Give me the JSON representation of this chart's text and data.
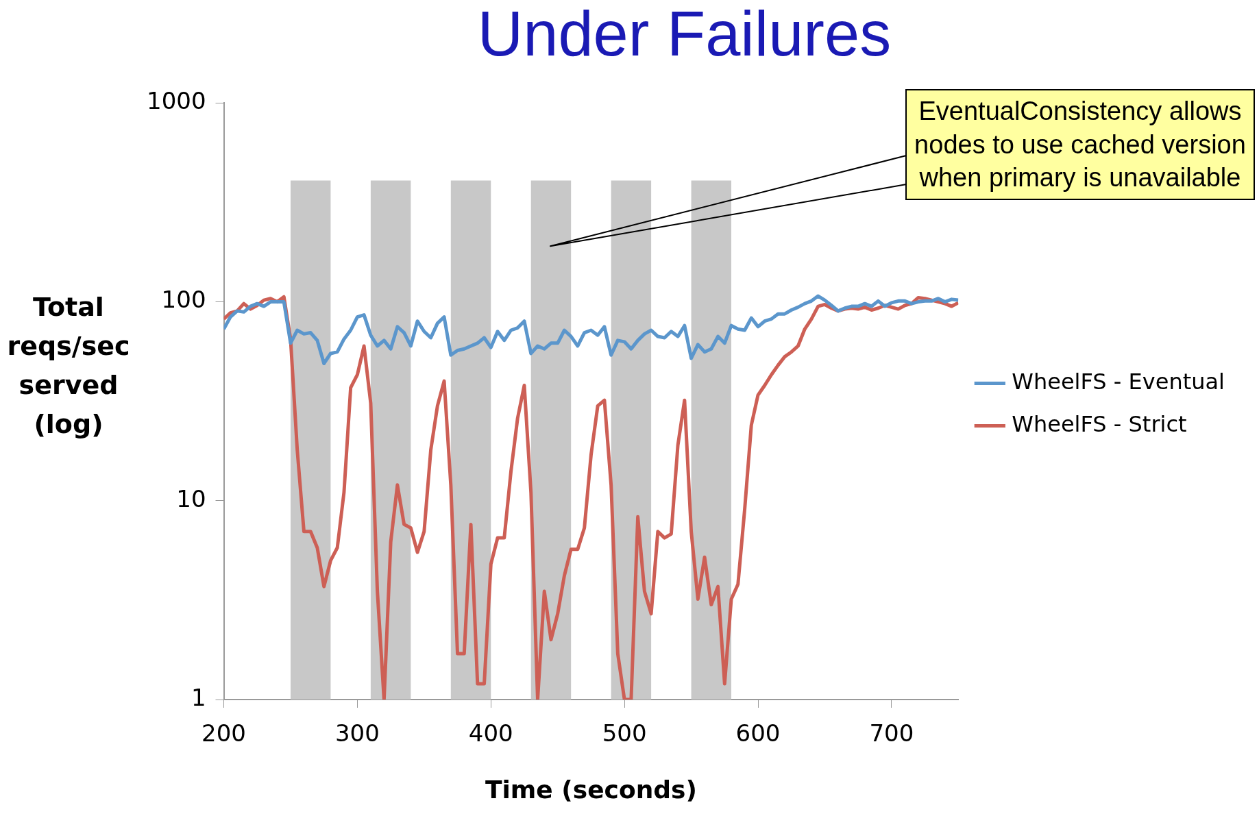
{
  "chart_data": {
    "type": "line",
    "title": "Under Failures",
    "xlabel": "Time (seconds)",
    "ylabel": "Total reqs/sec served (log)",
    "x": [
      200,
      205,
      210,
      215,
      220,
      225,
      230,
      235,
      240,
      245,
      250,
      255,
      260,
      265,
      270,
      275,
      280,
      285,
      290,
      295,
      300,
      305,
      310,
      315,
      320,
      325,
      330,
      335,
      340,
      345,
      350,
      355,
      360,
      365,
      370,
      375,
      380,
      385,
      390,
      395,
      400,
      405,
      410,
      415,
      420,
      425,
      430,
      435,
      440,
      445,
      450,
      455,
      460,
      465,
      470,
      475,
      480,
      485,
      490,
      495,
      500,
      505,
      510,
      515,
      520,
      525,
      530,
      535,
      540,
      545,
      550,
      555,
      560,
      565,
      570,
      575,
      580,
      585,
      590,
      595,
      600,
      605,
      610,
      615,
      620,
      625,
      630,
      635,
      640,
      645,
      650,
      655,
      660,
      665,
      670,
      675,
      680,
      685,
      690,
      695,
      700,
      705,
      710,
      715,
      720,
      725,
      730,
      735,
      740,
      745,
      750
    ],
    "series": [
      {
        "name": "WheelFS - Eventual",
        "color": "#5b96cc",
        "values": [
          73,
          84,
          90,
          89,
          95,
          98,
          95,
          100,
          100,
          100,
          62,
          72,
          69,
          70,
          64,
          49,
          55,
          56,
          65,
          72,
          84,
          86,
          68,
          60,
          64,
          58,
          75,
          70,
          60,
          80,
          71,
          66,
          78,
          84,
          54,
          57,
          58,
          60,
          62,
          66,
          59,
          71,
          64,
          72,
          74,
          80,
          55,
          60,
          58,
          62,
          62,
          72,
          67,
          60,
          70,
          72,
          68,
          75,
          54,
          64,
          63,
          58,
          64,
          69,
          72,
          67,
          66,
          71,
          67,
          76,
          52,
          61,
          56,
          58,
          67,
          62,
          76,
          73,
          72,
          83,
          75,
          80,
          82,
          87,
          87,
          91,
          94,
          98,
          101,
          107,
          102,
          96,
          90,
          93,
          95,
          95,
          98,
          95,
          101,
          95,
          99,
          101,
          101,
          98,
          100,
          101,
          101,
          104,
          100,
          103,
          102
        ]
      },
      {
        "name": "WheelFS - Strict",
        "color": "#cd5f55",
        "values": [
          82,
          88,
          90,
          98,
          92,
          96,
          102,
          104,
          100,
          106,
          65,
          18,
          7,
          7,
          5.8,
          3.7,
          5,
          5.8,
          11,
          37,
          43,
          60,
          31,
          3.5,
          1,
          6.2,
          12,
          7.6,
          7.3,
          5.5,
          7,
          18,
          30,
          40,
          12,
          1.7,
          1.7,
          7.6,
          1.2,
          1.2,
          4.8,
          6.5,
          6.5,
          14,
          26,
          38,
          11,
          1,
          3.5,
          2,
          2.7,
          4.2,
          5.7,
          5.7,
          7.3,
          17,
          30,
          32,
          12,
          1.7,
          1,
          1,
          8.3,
          3.5,
          2.7,
          7,
          6.5,
          6.8,
          19,
          32,
          7,
          3.2,
          5.2,
          3,
          3.7,
          1.2,
          3.2,
          3.8,
          9,
          24,
          34,
          38,
          43,
          48,
          53,
          56,
          60,
          73,
          82,
          95,
          97,
          93,
          90,
          92,
          93,
          92,
          94,
          91,
          93,
          96,
          94,
          92,
          96,
          98,
          105,
          104,
          102,
          100,
          98,
          95,
          99
        ]
      }
    ],
    "xlim": [
      200,
      750
    ],
    "xticks": [
      200,
      300,
      400,
      500,
      600,
      700
    ],
    "ylim": [
      1,
      1000
    ],
    "yticks": [
      1,
      10,
      100,
      1000
    ],
    "log": true,
    "grid": false,
    "legend": "right",
    "marker": "none",
    "line_style": "solid",
    "bands": [
      {
        "axis": "x",
        "from": 250,
        "to": 280,
        "color": "#c8c8c8"
      },
      {
        "axis": "x",
        "from": 310,
        "to": 340,
        "color": "#c8c8c8"
      },
      {
        "axis": "x",
        "from": 370,
        "to": 400,
        "color": "#c8c8c8"
      },
      {
        "axis": "x",
        "from": 430,
        "to": 460,
        "color": "#c8c8c8"
      },
      {
        "axis": "x",
        "from": 490,
        "to": 520,
        "color": "#c8c8c8"
      },
      {
        "axis": "x",
        "from": 550,
        "to": 580,
        "color": "#c8c8c8"
      }
    ],
    "annotations": [
      "EventualConsistency allows nodes to use cached version when primary is unavailable"
    ]
  }
}
